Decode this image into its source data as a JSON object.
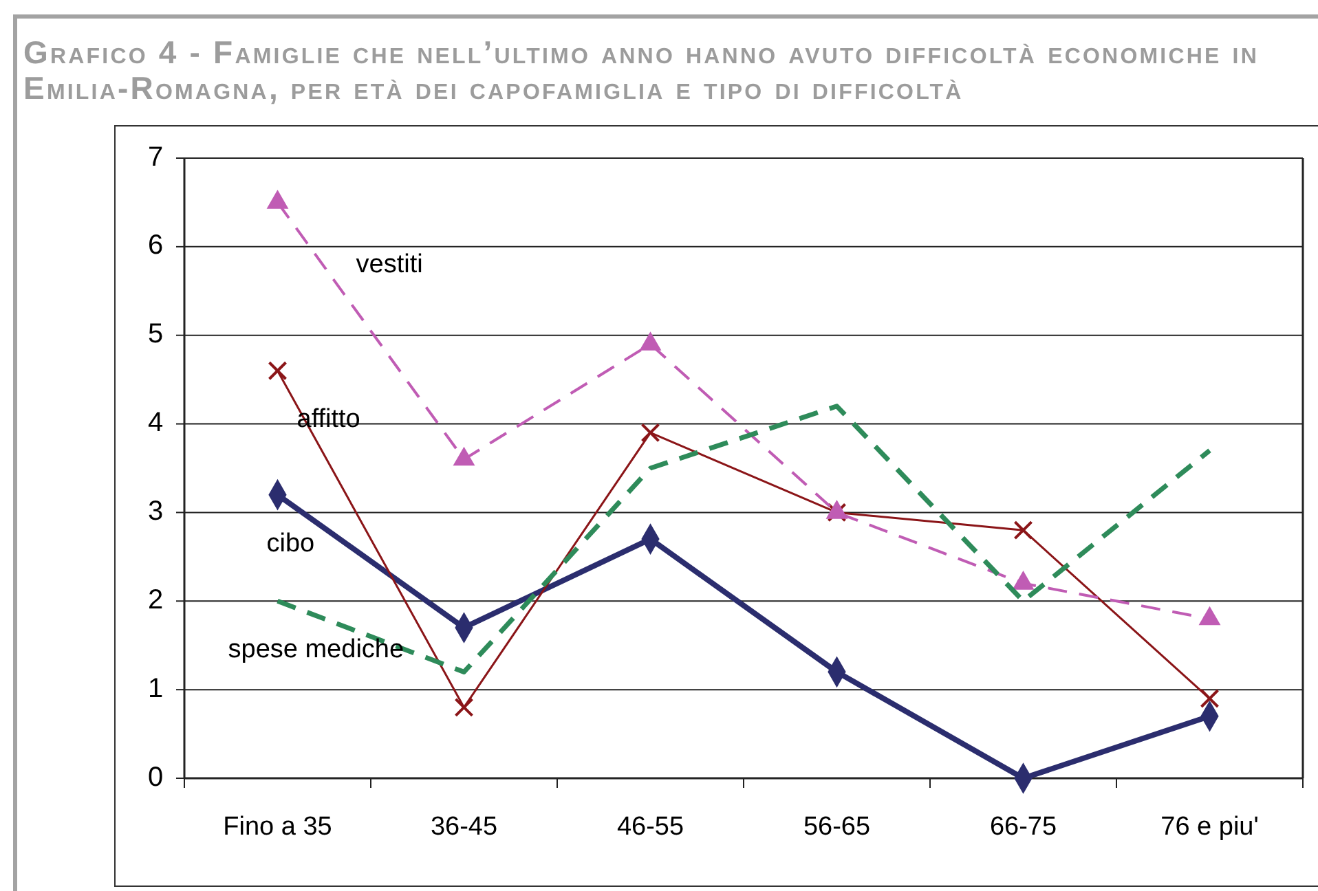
{
  "chart_data": {
    "type": "line",
    "title": "Grafico 4 - Famiglie che nell’ultimo anno hanno avuto difficoltà economiche in Emilia-Romagna, per età dei capofamiglia e tipo di difficoltà",
    "categories": [
      "Fino a 35",
      "36-45",
      "46-55",
      "56-65",
      "66-75",
      "76 e piu'"
    ],
    "series": [
      {
        "name": "cibo",
        "color": "#2b2d6e",
        "values": [
          3.2,
          1.7,
          2.7,
          1.2,
          0,
          0.7
        ],
        "marker": "diamond",
        "line_style": "solid"
      },
      {
        "name": "affitto",
        "color": "#8b1518",
        "values": [
          4.6,
          0.8,
          3.9,
          3.0,
          2.8,
          0.9
        ],
        "marker": "cross",
        "line_style": "solid"
      },
      {
        "name": "vestiti",
        "color": "#c05cb4",
        "values": [
          6.5,
          3.6,
          4.9,
          3.0,
          2.2,
          1.8
        ],
        "marker": "triangle",
        "line_style": "dashed"
      },
      {
        "name": "spese mediche",
        "color": "#2e8b5a",
        "values": [
          2.0,
          1.2,
          3.5,
          4.2,
          2.0,
          3.7
        ],
        "marker": "none",
        "line_style": "dashed"
      }
    ],
    "ylim": [
      0,
      7
    ],
    "yticks": [
      0,
      1,
      2,
      3,
      4,
      5,
      6,
      7
    ],
    "grid": "y"
  }
}
